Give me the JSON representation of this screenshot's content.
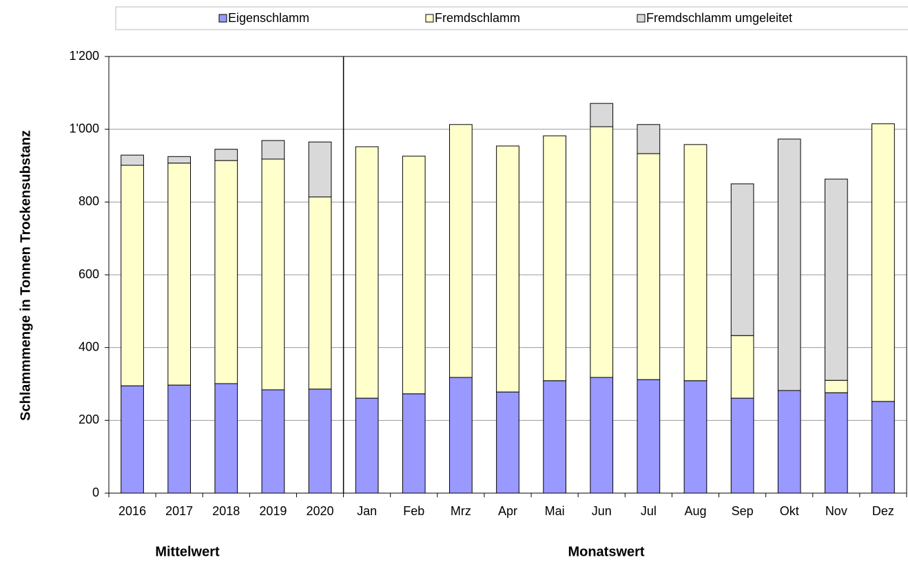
{
  "chart_data": {
    "type": "stacked_bar",
    "y_label": "Schlammmenge in Tonnen Trockensubstanz",
    "group_labels": [
      "Mittelwert",
      "Monatswert"
    ],
    "categories": [
      "2016",
      "2017",
      "2018",
      "2019",
      "2020",
      "Jan",
      "Feb",
      "Mrz",
      "Apr",
      "Mai",
      "Jun",
      "Jul",
      "Aug",
      "Sep",
      "Okt",
      "Nov",
      "Dez"
    ],
    "series": [
      {
        "name": "Eigenschlamm",
        "color": "#9999ff",
        "values": [
          295,
          297,
          301,
          284,
          286,
          261,
          273,
          318,
          278,
          309,
          318,
          312,
          309,
          261,
          282,
          276,
          252
        ]
      },
      {
        "name": "Fremdschlamm",
        "color": "#ffffcc",
        "values": [
          606,
          610,
          613,
          634,
          528,
          691,
          653,
          695,
          676,
          673,
          689,
          621,
          649,
          172,
          0,
          34,
          763
        ]
      },
      {
        "name": "Fremdschlamm umgeleitet",
        "color": "#d9d9d9",
        "values": [
          28,
          18,
          31,
          51,
          151,
          0,
          0,
          0,
          0,
          0,
          64,
          80,
          0,
          417,
          691,
          553,
          0
        ]
      }
    ],
    "ylim": [
      0,
      1200
    ],
    "yticks": [
      0,
      200,
      400,
      600,
      800,
      {
        "value": 1000,
        "label": "1'000"
      },
      {
        "value": 1200,
        "label": "1'200"
      }
    ],
    "grid": true,
    "legend": "top"
  }
}
